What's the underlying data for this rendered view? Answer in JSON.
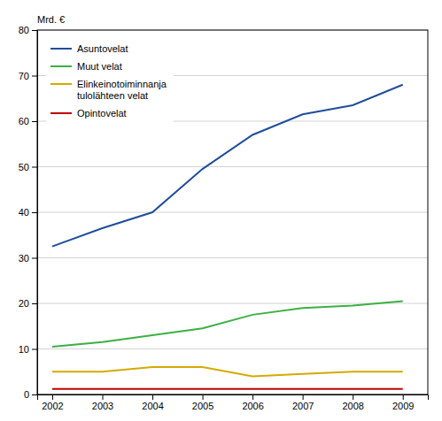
{
  "chart_data": {
    "type": "line",
    "ylabel": "Mrd. €",
    "x": [
      2002,
      2003,
      2004,
      2005,
      2006,
      2007,
      2008,
      2009
    ],
    "series": [
      {
        "name": "Asuntovelat",
        "color": "#1F4E9A",
        "values": [
          32.5,
          36.5,
          40.0,
          49.5,
          57.0,
          61.5,
          63.5,
          68.0
        ]
      },
      {
        "name": "Muut velat",
        "color": "#3CB043",
        "values": [
          10.5,
          11.5,
          13.0,
          14.5,
          17.5,
          19.0,
          19.5,
          20.5
        ]
      },
      {
        "name": "Elinkeinotoiminnanja\ntulolähteen velat",
        "color": "#D4AA00",
        "values": [
          5.0,
          5.0,
          6.0,
          6.0,
          4.0,
          4.5,
          5.0,
          5.0
        ]
      },
      {
        "name": "Opintovelat",
        "color": "#C00000",
        "values": [
          1.2,
          1.2,
          1.2,
          1.2,
          1.2,
          1.2,
          1.2,
          1.2
        ]
      }
    ],
    "xlim": [
      2001.7,
      2009.5
    ],
    "xticks": [
      2002,
      2003,
      2004,
      2005,
      2006,
      2007,
      2008,
      2009
    ],
    "ylim": [
      0,
      80
    ],
    "yticks": [
      0,
      10,
      20,
      30,
      40,
      50,
      60,
      70,
      80
    ],
    "grid": true,
    "legend": "upper left"
  }
}
